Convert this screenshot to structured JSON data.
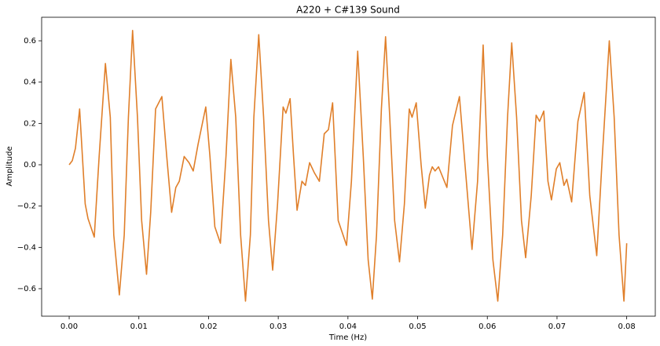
{
  "chart_data": {
    "type": "line",
    "title": "A220 + C#139 Sound",
    "x_label": "Time (Hz)",
    "y_label": "Amplitude",
    "x": [
      0,
      0.00045,
      0.0009,
      0.0015,
      0.0023,
      0.0027,
      0.0036,
      0.0043,
      0.0052,
      0.0059,
      0.0064,
      0.0072,
      0.0079,
      0.0085,
      0.0091,
      0.0098,
      0.0104,
      0.0111,
      0.0117,
      0.0124,
      0.013,
      0.0133,
      0.014,
      0.0147,
      0.0153,
      0.0158,
      0.0165,
      0.0172,
      0.0178,
      0.0185,
      0.0196,
      0.0202,
      0.0209,
      0.0217,
      0.0225,
      0.0232,
      0.0239,
      0.0246,
      0.0253,
      0.026,
      0.0265,
      0.0272,
      0.0279,
      0.0286,
      0.0292,
      0.0299,
      0.0307,
      0.0311,
      0.0317,
      0.0322,
      0.0327,
      0.0334,
      0.0339,
      0.0345,
      0.0352,
      0.0359,
      0.0366,
      0.0372,
      0.0378,
      0.0386,
      0.0398,
      0.0405,
      0.0414,
      0.0422,
      0.0429,
      0.0435,
      0.0441,
      0.0448,
      0.0454,
      0.046,
      0.0467,
      0.0474,
      0.0481,
      0.0488,
      0.0492,
      0.0498,
      0.0505,
      0.0511,
      0.0517,
      0.0521,
      0.0525,
      0.053,
      0.0542,
      0.055,
      0.056,
      0.0567,
      0.0578,
      0.0586,
      0.0594,
      0.06,
      0.0608,
      0.0615,
      0.0622,
      0.0629,
      0.0635,
      0.0642,
      0.0649,
      0.0655,
      0.0663,
      0.067,
      0.0675,
      0.0681,
      0.0687,
      0.0692,
      0.0699,
      0.0704,
      0.071,
      0.0714,
      0.0721,
      0.073,
      0.0739,
      0.0747,
      0.0757,
      0.0765,
      0.0775,
      0.0782,
      0.0789,
      0.0796,
      0.08
    ],
    "series": [
      {
        "color": "#e07f2a",
        "values": [
          0,
          0.02,
          0.08,
          0.27,
          -0.19,
          -0.26,
          -0.35,
          0.04,
          0.49,
          0.23,
          -0.34,
          -0.63,
          -0.34,
          0.23,
          0.65,
          0.23,
          -0.27,
          -0.53,
          -0.23,
          0.27,
          0.31,
          0.33,
          0.04,
          -0.23,
          -0.11,
          -0.08,
          0.04,
          0.01,
          -0.03,
          0.1,
          0.28,
          0.04,
          -0.3,
          -0.38,
          0.04,
          0.51,
          0.23,
          -0.34,
          -0.66,
          -0.34,
          0.23,
          0.63,
          0.23,
          -0.27,
          -0.51,
          -0.19,
          0.28,
          0.25,
          0.32,
          0.04,
          -0.22,
          -0.08,
          -0.1,
          0.01,
          -0.04,
          -0.08,
          0.15,
          0.17,
          0.3,
          -0.27,
          -0.39,
          -0.08,
          0.55,
          0.04,
          -0.46,
          -0.65,
          -0.34,
          0.27,
          0.62,
          0.23,
          -0.27,
          -0.47,
          -0.19,
          0.27,
          0.23,
          0.3,
          0,
          -0.21,
          -0.05,
          -0.01,
          -0.03,
          -0.01,
          -0.11,
          0.19,
          0.33,
          0.04,
          -0.41,
          -0.08,
          0.58,
          0.04,
          -0.46,
          -0.66,
          -0.34,
          0.23,
          0.59,
          0.23,
          -0.27,
          -0.45,
          -0.15,
          0.24,
          0.21,
          0.26,
          -0.08,
          -0.17,
          -0.02,
          0.01,
          -0.1,
          -0.07,
          -0.18,
          0.21,
          0.35,
          -0.15,
          -0.44,
          0.04,
          0.6,
          0.23,
          -0.34,
          -0.66,
          -0.38
        ]
      }
    ],
    "xlim": [
      -0.00395,
      0.0841
    ],
    "ylim": [
      -0.733,
      0.714
    ],
    "xticks": [
      {
        "value": 0,
        "label": "0.00"
      },
      0.01,
      0.02,
      0.03,
      0.04,
      0.05,
      0.06,
      0.07,
      0.08
    ],
    "yticks": [
      {
        "value": -0.6,
        "label": "−0.6"
      },
      {
        "value": -0.4,
        "label": "−0.4"
      },
      {
        "value": -0.2,
        "label": "−0.2"
      },
      {
        "value": 0,
        "label": "0.0"
      },
      0.2,
      0.4,
      0.6
    ]
  }
}
